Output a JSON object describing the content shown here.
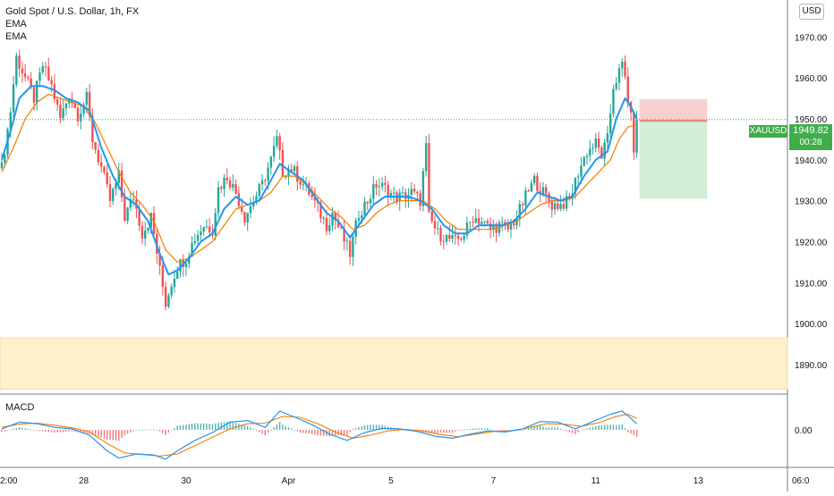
{
  "legend": {
    "symbol": "Gold Spot / U.S. Dollar, 1h, FX",
    "indicator1": "EMA",
    "indicator2": "EMA"
  },
  "currency_button": "USD",
  "macd_label": "MACD",
  "price_tag": {
    "symbol": "XAUUSD",
    "price": "1949.82",
    "countdown": "00:28"
  },
  "colors": {
    "up": "#26a69a",
    "down": "#ef5350",
    "ema_fast": "#2196f3",
    "ema_slow": "#f57c00",
    "demand_zone": "#fff1cc",
    "stop_zone": "#f8c8c8",
    "target_zone": "#d2eed4",
    "price_badge": "#3fae49"
  },
  "chart_data": {
    "type": "candlestick",
    "title": "Gold Spot / U.S. Dollar, 1h, FX",
    "y_axis": {
      "ticks": [
        1890,
        1900,
        1910,
        1920,
        1930,
        1940,
        1950,
        1960,
        1970
      ],
      "tick_labels": [
        "1890.00",
        "1900.00",
        "1910.00",
        "1920.00",
        "1930.00",
        "1940.00",
        "1950.00",
        "1960.00",
        "1970.00"
      ],
      "range": [
        1883,
        1979
      ]
    },
    "x_axis": {
      "labels": [
        "2:00",
        "28",
        "30",
        "Apr",
        "5",
        "7",
        "11",
        "13",
        "06:0"
      ],
      "bar_index": [
        0,
        28,
        63,
        98,
        133,
        168,
        203,
        238,
        273
      ]
    },
    "last_price": 1949.82,
    "demand_zone": {
      "low": 1884,
      "high": 1896.5
    },
    "position": {
      "entry": 1949.5,
      "stop": 1954.8,
      "target": 1930.5,
      "start_bar": 217,
      "end_bar": 238
    },
    "ohlc_points": [
      [
        0,
        1938
      ],
      [
        3,
        1952
      ],
      [
        5,
        1965
      ],
      [
        8,
        1960
      ],
      [
        11,
        1955
      ],
      [
        14,
        1963
      ],
      [
        17,
        1958
      ],
      [
        20,
        1950
      ],
      [
        23,
        1956
      ],
      [
        26,
        1951
      ],
      [
        29,
        1955
      ],
      [
        31,
        1945
      ],
      [
        34,
        1938
      ],
      [
        37,
        1930
      ],
      [
        40,
        1936
      ],
      [
        42,
        1926
      ],
      [
        45,
        1931
      ],
      [
        48,
        1922
      ],
      [
        51,
        1926
      ],
      [
        54,
        1913
      ],
      [
        56,
        1905
      ],
      [
        58,
        1910
      ],
      [
        60,
        1914
      ],
      [
        63,
        1916
      ],
      [
        66,
        1921
      ],
      [
        69,
        1924
      ],
      [
        72,
        1923
      ],
      [
        74,
        1933
      ],
      [
        77,
        1936
      ],
      [
        80,
        1932
      ],
      [
        83,
        1926
      ],
      [
        86,
        1930
      ],
      [
        89,
        1934
      ],
      [
        92,
        1940
      ],
      [
        94,
        1945
      ],
      [
        96,
        1937
      ],
      [
        99,
        1938
      ],
      [
        102,
        1935
      ],
      [
        105,
        1932
      ],
      [
        108,
        1928
      ],
      [
        111,
        1924
      ],
      [
        113,
        1927
      ],
      [
        116,
        1922
      ],
      [
        119,
        1917
      ],
      [
        122,
        1927
      ],
      [
        125,
        1930
      ],
      [
        128,
        1934
      ],
      [
        131,
        1933
      ],
      [
        134,
        1931
      ],
      [
        137,
        1931
      ],
      [
        140,
        1932
      ],
      [
        143,
        1930
      ],
      [
        145,
        1943
      ],
      [
        146,
        1926
      ],
      [
        149,
        1922
      ],
      [
        152,
        1921
      ],
      [
        155,
        1920
      ],
      [
        158,
        1922
      ],
      [
        161,
        1926
      ],
      [
        164,
        1925
      ],
      [
        167,
        1923
      ],
      [
        170,
        1924
      ],
      [
        173,
        1923
      ],
      [
        176,
        1926
      ],
      [
        179,
        1931
      ],
      [
        182,
        1935
      ],
      [
        185,
        1932
      ],
      [
        188,
        1929
      ],
      [
        191,
        1929
      ],
      [
        194,
        1930
      ],
      [
        197,
        1937
      ],
      [
        200,
        1942
      ],
      [
        203,
        1944
      ],
      [
        205,
        1941
      ],
      [
        207,
        1945
      ],
      [
        209,
        1958
      ],
      [
        212,
        1963
      ],
      [
        213,
        1960
      ],
      [
        214,
        1955
      ],
      [
        215,
        1950
      ],
      [
        216,
        1943
      ],
      [
        217,
        1949.8
      ]
    ],
    "ema_fast": [
      [
        0,
        1940
      ],
      [
        3,
        1947
      ],
      [
        6,
        1955
      ],
      [
        10,
        1958
      ],
      [
        14,
        1958
      ],
      [
        18,
        1957
      ],
      [
        22,
        1955
      ],
      [
        26,
        1954
      ],
      [
        30,
        1952
      ],
      [
        34,
        1943
      ],
      [
        38,
        1936
      ],
      [
        42,
        1931
      ],
      [
        46,
        1929
      ],
      [
        50,
        1925
      ],
      [
        54,
        1917
      ],
      [
        57,
        1912
      ],
      [
        60,
        1913
      ],
      [
        64,
        1916
      ],
      [
        68,
        1920
      ],
      [
        72,
        1922
      ],
      [
        76,
        1928
      ],
      [
        80,
        1931
      ],
      [
        84,
        1929
      ],
      [
        88,
        1930
      ],
      [
        92,
        1935
      ],
      [
        95,
        1939
      ],
      [
        99,
        1937
      ],
      [
        103,
        1935
      ],
      [
        107,
        1931
      ],
      [
        111,
        1927
      ],
      [
        115,
        1925
      ],
      [
        119,
        1921
      ],
      [
        123,
        1925
      ],
      [
        127,
        1929
      ],
      [
        131,
        1931
      ],
      [
        135,
        1931
      ],
      [
        139,
        1931
      ],
      [
        143,
        1930
      ],
      [
        147,
        1928
      ],
      [
        151,
        1924
      ],
      [
        155,
        1922
      ],
      [
        159,
        1922
      ],
      [
        163,
        1924
      ],
      [
        167,
        1924
      ],
      [
        171,
        1924
      ],
      [
        175,
        1925
      ],
      [
        179,
        1928
      ],
      [
        183,
        1932
      ],
      [
        187,
        1931
      ],
      [
        191,
        1930
      ],
      [
        195,
        1931
      ],
      [
        199,
        1936
      ],
      [
        203,
        1940
      ],
      [
        207,
        1942
      ],
      [
        210,
        1950
      ],
      [
        213,
        1955
      ],
      [
        215,
        1953
      ],
      [
        217,
        1950
      ]
    ],
    "ema_slow": [
      [
        0,
        1937
      ],
      [
        4,
        1943
      ],
      [
        8,
        1950
      ],
      [
        12,
        1954
      ],
      [
        16,
        1956
      ],
      [
        20,
        1955
      ],
      [
        24,
        1954
      ],
      [
        28,
        1953
      ],
      [
        32,
        1949
      ],
      [
        36,
        1943
      ],
      [
        40,
        1937
      ],
      [
        44,
        1932
      ],
      [
        48,
        1929
      ],
      [
        52,
        1925
      ],
      [
        56,
        1918
      ],
      [
        60,
        1915
      ],
      [
        64,
        1916
      ],
      [
        68,
        1918
      ],
      [
        72,
        1920
      ],
      [
        76,
        1924
      ],
      [
        80,
        1928
      ],
      [
        84,
        1929
      ],
      [
        88,
        1930
      ],
      [
        92,
        1932
      ],
      [
        96,
        1936
      ],
      [
        100,
        1936
      ],
      [
        104,
        1934
      ],
      [
        108,
        1931
      ],
      [
        112,
        1928
      ],
      [
        116,
        1926
      ],
      [
        120,
        1923
      ],
      [
        124,
        1924
      ],
      [
        128,
        1927
      ],
      [
        132,
        1929
      ],
      [
        136,
        1930
      ],
      [
        140,
        1930
      ],
      [
        144,
        1930
      ],
      [
        148,
        1928
      ],
      [
        152,
        1925
      ],
      [
        156,
        1923
      ],
      [
        160,
        1923
      ],
      [
        164,
        1923
      ],
      [
        168,
        1923
      ],
      [
        172,
        1924
      ],
      [
        176,
        1925
      ],
      [
        180,
        1927
      ],
      [
        184,
        1929
      ],
      [
        188,
        1930
      ],
      [
        192,
        1930
      ],
      [
        196,
        1931
      ],
      [
        200,
        1934
      ],
      [
        204,
        1937
      ],
      [
        208,
        1940
      ],
      [
        211,
        1945
      ],
      [
        214,
        1948
      ],
      [
        217,
        1948.5
      ]
    ],
    "macd": {
      "zero_label": "0.00",
      "range": [
        -7,
        6
      ],
      "macd_line": [
        [
          0,
          0.2
        ],
        [
          6,
          1.5
        ],
        [
          12,
          1.2
        ],
        [
          18,
          0.5
        ],
        [
          24,
          0.2
        ],
        [
          30,
          -1
        ],
        [
          36,
          -4
        ],
        [
          40,
          -5.4
        ],
        [
          46,
          -4.6
        ],
        [
          52,
          -4.8
        ],
        [
          56,
          -5.6
        ],
        [
          60,
          -4
        ],
        [
          66,
          -2
        ],
        [
          72,
          -0.5
        ],
        [
          78,
          1.5
        ],
        [
          84,
          1.8
        ],
        [
          90,
          0.5
        ],
        [
          95,
          3.6
        ],
        [
          100,
          2.5
        ],
        [
          106,
          1
        ],
        [
          112,
          -0.8
        ],
        [
          118,
          -2
        ],
        [
          124,
          -0.5
        ],
        [
          130,
          0.3
        ],
        [
          136,
          0.2
        ],
        [
          142,
          -0.3
        ],
        [
          148,
          -1.2
        ],
        [
          154,
          -1.6
        ],
        [
          160,
          -0.8
        ],
        [
          166,
          -0.2
        ],
        [
          172,
          -0.4
        ],
        [
          178,
          0.2
        ],
        [
          184,
          1.6
        ],
        [
          190,
          1.5
        ],
        [
          196,
          0.2
        ],
        [
          202,
          1.6
        ],
        [
          208,
          3
        ],
        [
          212,
          3.6
        ],
        [
          215,
          2.2
        ],
        [
          217,
          1.2
        ]
      ],
      "signal_line": [
        [
          0,
          0.5
        ],
        [
          6,
          1.1
        ],
        [
          12,
          1.3
        ],
        [
          18,
          0.9
        ],
        [
          24,
          0.4
        ],
        [
          30,
          -0.4
        ],
        [
          36,
          -2.6
        ],
        [
          42,
          -4.4
        ],
        [
          48,
          -4.7
        ],
        [
          54,
          -5
        ],
        [
          60,
          -4.6
        ],
        [
          66,
          -3
        ],
        [
          72,
          -1.4
        ],
        [
          78,
          0.2
        ],
        [
          84,
          1.2
        ],
        [
          90,
          1.3
        ],
        [
          96,
          2.6
        ],
        [
          102,
          2.4
        ],
        [
          108,
          1.2
        ],
        [
          114,
          -0.4
        ],
        [
          120,
          -1.6
        ],
        [
          126,
          -1
        ],
        [
          132,
          -0.2
        ],
        [
          138,
          0.1
        ],
        [
          144,
          -0.2
        ],
        [
          150,
          -0.9
        ],
        [
          156,
          -1.3
        ],
        [
          162,
          -0.8
        ],
        [
          168,
          -0.3
        ],
        [
          174,
          -0.2
        ],
        [
          180,
          0.4
        ],
        [
          186,
          1.2
        ],
        [
          192,
          1.1
        ],
        [
          198,
          0.7
        ],
        [
          204,
          1.4
        ],
        [
          210,
          2.6
        ],
        [
          214,
          3
        ],
        [
          217,
          2.2
        ]
      ]
    }
  }
}
